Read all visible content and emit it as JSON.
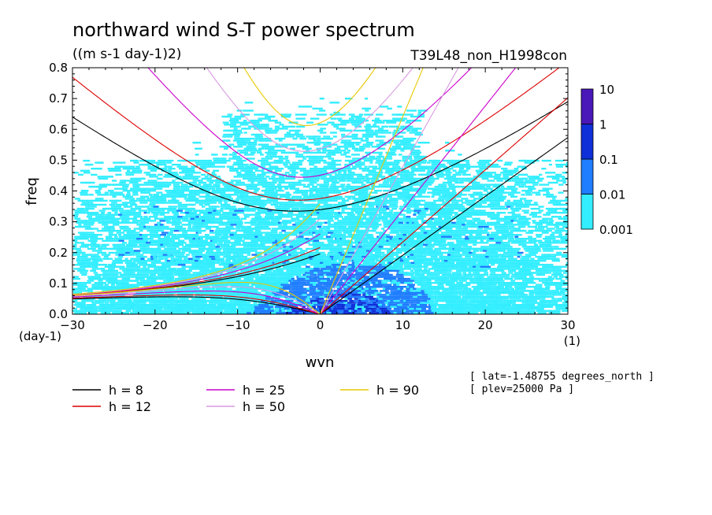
{
  "chart_data": {
    "type": "heatmap",
    "title": "northward wind S-T power spectrum",
    "units": "((m s-1 day-1)2)",
    "run_label": "T39L48_non_H1998con",
    "xlabel": "wvn",
    "ylabel": "freq",
    "x_unit": "(1)",
    "y_unit": "(day-1)",
    "xlim": [
      -30,
      30
    ],
    "ylim": [
      0,
      0.8
    ],
    "xticks": [
      -30,
      -20,
      -10,
      0,
      10,
      20,
      30
    ],
    "yticks": [
      0.0,
      0.1,
      0.2,
      0.3,
      0.4,
      0.5,
      0.6,
      0.7,
      0.8
    ],
    "colorbar": {
      "levels": [
        "0.001",
        "0.01",
        "0.1",
        "1",
        "10"
      ],
      "colors": [
        "#33eeff",
        "#1f7dff",
        "#0f2fd8",
        "#4a17b8"
      ]
    },
    "dispersion_curves": [
      {
        "name": "h =  8",
        "h": 8,
        "color": "#000000"
      },
      {
        "name": "h = 12",
        "h": 12,
        "color": "#dd0000"
      },
      {
        "name": "h = 25",
        "h": 25,
        "color": "#cc00cc"
      },
      {
        "name": "h = 50",
        "h": 50,
        "color": "#d89be0"
      },
      {
        "name": "h = 90",
        "h": 90,
        "color": "#e8c800"
      }
    ],
    "annotations": [
      "[ lat=-1.48755 degrees_north ]",
      "[ plev=25000 Pa ]"
    ]
  }
}
